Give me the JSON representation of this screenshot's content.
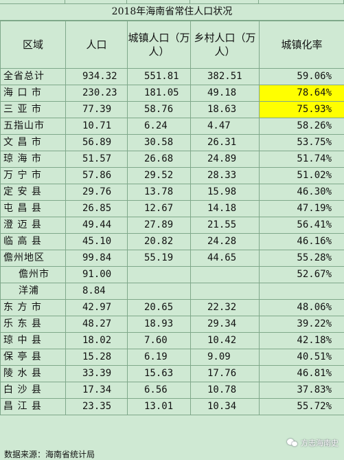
{
  "title": "2018年海南省常住人口状况",
  "headers": [
    "区域",
    "人口",
    "城镇人口（万人）",
    "乡村人口（万人）",
    "城镇化率"
  ],
  "rows": [
    {
      "region": "全省总计",
      "pop": "934.32",
      "urban": "551.81",
      "rural": "382.51",
      "rate": "59.06%",
      "highlight": false
    },
    {
      "region": "海 口 市",
      "pop": "230.23",
      "urban": "181.05",
      "rural": "49.18",
      "rate": "78.64%",
      "highlight": true
    },
    {
      "region": "三 亚 市",
      "pop": "77.39",
      "urban": "58.76",
      "rural": "18.63",
      "rate": "75.93%",
      "highlight": true
    },
    {
      "region": "五指山市",
      "pop": "10.71",
      "urban": "6.24",
      "rural": "4.47",
      "rate": "58.26%",
      "highlight": false
    },
    {
      "region": "文 昌 市",
      "pop": "56.89",
      "urban": "30.58",
      "rural": "26.31",
      "rate": "53.75%",
      "highlight": false
    },
    {
      "region": "琼 海 市",
      "pop": "51.57",
      "urban": "26.68",
      "rural": "24.89",
      "rate": "51.74%",
      "highlight": false
    },
    {
      "region": "万 宁 市",
      "pop": "57.86",
      "urban": "29.52",
      "rural": "28.33",
      "rate": "51.02%",
      "highlight": false
    },
    {
      "region": "定 安 县",
      "pop": "29.76",
      "urban": "13.78",
      "rural": "15.98",
      "rate": "46.30%",
      "highlight": false
    },
    {
      "region": "屯 昌 县",
      "pop": "26.85",
      "urban": "12.67",
      "rural": "14.18",
      "rate": "47.19%",
      "highlight": false
    },
    {
      "region": "澄 迈 县",
      "pop": "49.44",
      "urban": "27.89",
      "rural": "21.55",
      "rate": "56.41%",
      "highlight": false
    },
    {
      "region": "临 高 县",
      "pop": "45.10",
      "urban": "20.82",
      "rural": "24.28",
      "rate": "46.16%",
      "highlight": false
    },
    {
      "region": "儋州地区",
      "pop": "99.84",
      "urban": "55.19",
      "rural": "44.65",
      "rate": "55.28%",
      "highlight": false
    },
    {
      "region": "儋州市",
      "pop": "91.00",
      "urban": "",
      "rural": "",
      "rate": "52.67%",
      "highlight": false,
      "indent": true
    },
    {
      "region": "洋浦",
      "pop": "8.84",
      "urban": "",
      "rural": "",
      "rate": "",
      "highlight": false,
      "indent": true
    },
    {
      "region": "东 方 市",
      "pop": "42.97",
      "urban": "20.65",
      "rural": "22.32",
      "rate": "48.06%",
      "highlight": false
    },
    {
      "region": "乐 东 县",
      "pop": "48.27",
      "urban": "18.93",
      "rural": "29.34",
      "rate": "39.22%",
      "highlight": false
    },
    {
      "region": "琼 中 县",
      "pop": "18.02",
      "urban": "7.60",
      "rural": "10.42",
      "rate": "42.18%",
      "highlight": false
    },
    {
      "region": "保 亭 县",
      "pop": "15.28",
      "urban": "6.19",
      "rural": "9.09",
      "rate": "40.51%",
      "highlight": false
    },
    {
      "region": "陵 水 县",
      "pop": "33.39",
      "urban": "15.63",
      "rural": "17.76",
      "rate": "46.81%",
      "highlight": false
    },
    {
      "region": "白 沙 县",
      "pop": "17.34",
      "urban": "6.56",
      "rural": "10.78",
      "rate": "37.83%",
      "highlight": false
    },
    {
      "region": "昌 江 县",
      "pop": "23.35",
      "urban": "13.01",
      "rural": "10.34",
      "rate": "55.72%",
      "highlight": false
    }
  ],
  "source": "数据来源：海南省统计局",
  "watermark": "方志海南史",
  "colors": {
    "background": "#cfe9d3",
    "highlight": "#ffff00",
    "gridline": "#7fa88a"
  }
}
